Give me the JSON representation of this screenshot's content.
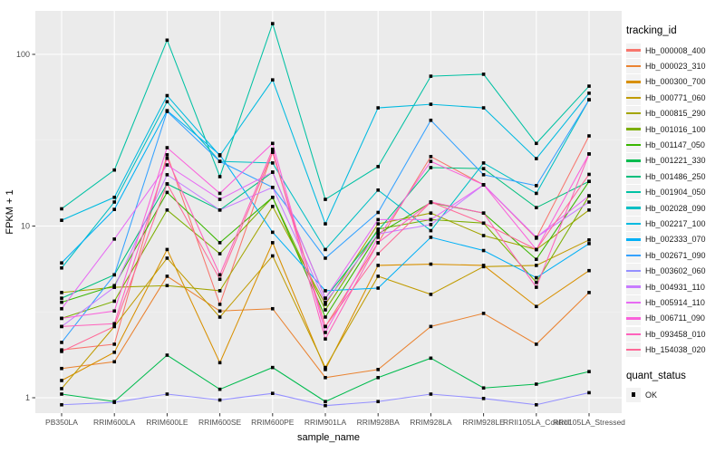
{
  "chart_data": {
    "type": "line",
    "title": "",
    "xlabel": "sample_name",
    "ylabel": "FPKM + 1",
    "y_scale": "log10",
    "y_ticks": [
      1,
      10,
      100
    ],
    "y_minor_ticks": [
      3.162,
      31.62
    ],
    "ylim": [
      0.82,
      180
    ],
    "grid": "on",
    "panel_background": "#EBEBEB",
    "grid_major_color": "#FFFFFF",
    "grid_minor_color": "#F5F5F5",
    "point_color": "#000000",
    "legend": {
      "title": "tracking_id",
      "position": "right"
    },
    "quant_legend": {
      "title": "quant_status",
      "items": [
        "OK"
      ]
    },
    "categories": [
      "PB350LA",
      "RRIM600LA",
      "RRIM600LE",
      "RRIM600SE",
      "RRIM600PE",
      "RRIM901LA",
      "RRIM928BA",
      "RRIM928LA",
      "RRIM928LE",
      "RRII105LA_Control",
      "RRII105LA_Stressed"
    ],
    "series": [
      {
        "name": "Hb_000008_400",
        "color": "#F8766D",
        "values": [
          1.9,
          2.05,
          26.0,
          3.5,
          26.9,
          2.6,
          8.0,
          25.4,
          17.4,
          8.5,
          33.5
        ]
      },
      {
        "name": "Hb_000023_310",
        "color": "#EA8331",
        "values": [
          1.48,
          1.62,
          5.1,
          3.2,
          3.3,
          1.31,
          1.46,
          2.6,
          3.1,
          2.05,
          4.1
        ]
      },
      {
        "name": "Hb_000300_700",
        "color": "#D89000",
        "values": [
          1.26,
          1.84,
          7.3,
          1.6,
          8.0,
          1.46,
          5.9,
          6.0,
          5.9,
          3.4,
          5.5
        ]
      },
      {
        "name": "Hb_000771_060",
        "color": "#C09B00",
        "values": [
          1.13,
          2.6,
          6.5,
          2.95,
          6.7,
          1.5,
          5.1,
          4.0,
          5.8,
          5.9,
          8.3
        ]
      },
      {
        "name": "Hb_000815_290",
        "color": "#A3A500",
        "values": [
          4.1,
          4.4,
          4.5,
          4.2,
          13.0,
          3.5,
          10.3,
          11.9,
          8.8,
          7.3,
          12.4
        ]
      },
      {
        "name": "Hb_001016_100",
        "color": "#7CAE00",
        "values": [
          2.9,
          3.65,
          12.4,
          6.9,
          14.7,
          3.25,
          9.6,
          10.9,
          10.4,
          4.7,
          15.0
        ]
      },
      {
        "name": "Hb_001147_050",
        "color": "#39B600",
        "values": [
          3.6,
          4.5,
          15.7,
          8.0,
          14.7,
          2.95,
          9.0,
          13.7,
          11.9,
          6.4,
          18.2
        ]
      },
      {
        "name": "Hb_001221_330",
        "color": "#00BB4E",
        "values": [
          1.05,
          0.95,
          1.77,
          1.12,
          1.5,
          0.95,
          1.31,
          1.7,
          1.14,
          1.2,
          1.42
        ]
      },
      {
        "name": "Hb_001486_250",
        "color": "#00BF7D",
        "values": [
          3.8,
          5.2,
          17.6,
          12.4,
          20.6,
          3.8,
          9.4,
          21.9,
          21.6,
          12.8,
          18.2
        ]
      },
      {
        "name": "Hb_001904_050",
        "color": "#00C1A3",
        "values": [
          12.6,
          21.2,
          121.0,
          19.4,
          151.0,
          14.3,
          22.2,
          74.6,
          76.6,
          30.3,
          65.3
        ]
      },
      {
        "name": "Hb_002028_090",
        "color": "#00BFC4",
        "values": [
          5.7,
          13.8,
          53.0,
          23.8,
          23.3,
          7.3,
          16.2,
          9.4,
          23.3,
          15.5,
          54.4
        ]
      },
      {
        "name": "Hb_002217_100",
        "color": "#00BAE0",
        "values": [
          10.8,
          14.7,
          57.5,
          25.7,
          71.0,
          10.3,
          48.8,
          51.2,
          48.8,
          24.7,
          59.4
        ]
      },
      {
        "name": "Hb_002333_070",
        "color": "#00B0F6",
        "values": [
          6.1,
          12.5,
          47.0,
          26.0,
          9.2,
          4.2,
          4.35,
          8.6,
          7.2,
          5.0,
          7.9
        ]
      },
      {
        "name": "Hb_002671_090",
        "color": "#35A2FF",
        "values": [
          2.1,
          5.2,
          46.5,
          23.8,
          16.8,
          6.5,
          12.0,
          41.3,
          19.9,
          17.2,
          54.4
        ]
      },
      {
        "name": "Hb_003602_060",
        "color": "#9590FF",
        "values": [
          0.91,
          0.94,
          1.05,
          0.97,
          1.06,
          0.9,
          0.95,
          1.05,
          0.99,
          0.91,
          1.07
        ]
      },
      {
        "name": "Hb_004931_110",
        "color": "#C77CFF",
        "values": [
          2.6,
          4.4,
          19.9,
          12.4,
          16.8,
          3.6,
          9.0,
          10.2,
          17.4,
          8.6,
          13.8
        ]
      },
      {
        "name": "Hb_005914_110",
        "color": "#E76BF3",
        "values": [
          3.3,
          8.4,
          22.7,
          14.3,
          20.6,
          3.8,
          10.9,
          10.9,
          17.4,
          8.6,
          15.0
        ]
      },
      {
        "name": "Hb_006711_090",
        "color": "#FA62DB",
        "values": [
          2.9,
          3.2,
          28.6,
          15.5,
          30.3,
          2.4,
          8.6,
          23.8,
          17.4,
          7.3,
          26.3
        ]
      },
      {
        "name": "Hb_093458_010",
        "color": "#FF62BC",
        "values": [
          2.6,
          2.7,
          24.8,
          5.2,
          28.0,
          2.2,
          8.0,
          13.8,
          11.9,
          4.4,
          26.3
        ]
      },
      {
        "name": "Hb_154038_020",
        "color": "#FF6A98",
        "values": [
          1.86,
          2.6,
          17.6,
          4.9,
          26.9,
          2.6,
          6.9,
          13.8,
          10.4,
          7.3,
          20.0
        ]
      }
    ]
  }
}
